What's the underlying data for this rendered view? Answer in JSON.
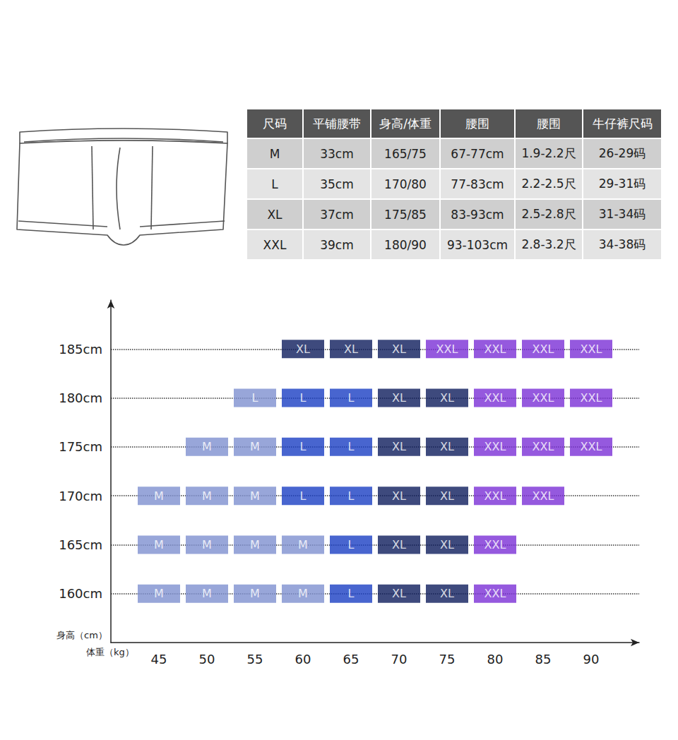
{
  "table": {
    "header": [
      "尺码",
      "平铺腰带",
      "身高/体重",
      "腰围",
      "腰围",
      "牛仔裤尺码"
    ],
    "rows": [
      [
        "M",
        "33cm",
        "165/75",
        "67-77cm",
        "1.9-2.2尺",
        "26-29码"
      ],
      [
        "L",
        "35cm",
        "170/80",
        "77-83cm",
        "2.2-2.5尺",
        "29-31码"
      ],
      [
        "XL",
        "37cm",
        "175/85",
        "83-93cm",
        "2.5-2.8尺",
        "31-34码"
      ],
      [
        "XXL",
        "39cm",
        "180/90",
        "93-103cm",
        "2.8-3.2尺",
        "34-38码"
      ]
    ]
  },
  "chart_data": {
    "type": "scatter",
    "x_label": "体重（kg）",
    "y_label": "身高（cm）",
    "x": [
      60,
      65,
      70,
      75,
      80,
      85,
      90,
      55,
      60,
      65,
      70,
      75,
      80,
      85,
      90,
      50,
      55,
      60,
      65,
      70,
      75,
      80,
      85,
      90,
      45,
      50,
      55,
      60,
      65,
      70,
      75,
      80,
      85,
      45,
      50,
      55,
      60,
      65,
      70,
      75,
      80,
      45,
      50,
      55,
      60,
      65,
      70,
      75,
      80
    ],
    "y": [
      185,
      185,
      185,
      185,
      185,
      185,
      185,
      180,
      180,
      180,
      180,
      180,
      180,
      180,
      180,
      175,
      175,
      175,
      175,
      175,
      175,
      175,
      175,
      175,
      170,
      170,
      170,
      170,
      170,
      170,
      170,
      170,
      170,
      165,
      165,
      165,
      165,
      165,
      165,
      165,
      165,
      160,
      160,
      160,
      160,
      160,
      160,
      160,
      160
    ],
    "labels": [
      "XL",
      "XL",
      "XL",
      "XXL",
      "XXL",
      "XXL",
      "XXL",
      "L",
      "L",
      "L",
      "XL",
      "XL",
      "XXL",
      "XXL",
      "XXL",
      "M",
      "M",
      "L",
      "L",
      "XL",
      "XL",
      "XXL",
      "XXL",
      "XXL",
      "M",
      "M",
      "M",
      "L",
      "L",
      "XL",
      "XL",
      "XXL",
      "XXL",
      "M",
      "M",
      "M",
      "M",
      "L",
      "XL",
      "XL",
      "XXL",
      "M",
      "M",
      "M",
      "M",
      "L",
      "XL",
      "XL",
      "XXL"
    ],
    "colors": [
      "#0e1d5c",
      "#0e1d5c",
      "#0e1d5c",
      "#7b2fd6",
      "#7b2fd6",
      "#7b2fd6",
      "#7b2fd6",
      "#7e90cf",
      "#1a3fc3",
      "#1a3fc3",
      "#0e1d5c",
      "#0e1d5c",
      "#7b2fd6",
      "#7b2fd6",
      "#7b2fd6",
      "#7e90cf",
      "#7e90cf",
      "#1a3fc3",
      "#1a3fc3",
      "#0e1d5c",
      "#0e1d5c",
      "#7b2fd6",
      "#7b2fd6",
      "#7b2fd6",
      "#7e90cf",
      "#7e90cf",
      "#7e90cf",
      "#1a3fc3",
      "#1a3fc3",
      "#0e1d5c",
      "#0e1d5c",
      "#7b2fd6",
      "#7b2fd6",
      "#7e90cf",
      "#7e90cf",
      "#7e90cf",
      "#7e90cf",
      "#1a3fc3",
      "#0e1d5c",
      "#0e1d5c",
      "#7b2fd6",
      "#7e90cf",
      "#7e90cf",
      "#7e90cf",
      "#7e90cf",
      "#1a3fc3",
      "#0e1d5c",
      "#0e1d5c",
      "#7b2fd6"
    ],
    "xlim": [
      40,
      95
    ],
    "xticks": [
      45,
      50,
      55,
      60,
      65,
      70,
      75,
      80,
      85,
      90
    ],
    "ylim": [
      155,
      190
    ],
    "yticks": [
      {
        "value": 160,
        "label": "160cm"
      },
      {
        "value": 165,
        "label": "165cm"
      },
      {
        "value": 170,
        "label": "170cm"
      },
      {
        "value": 175,
        "label": "175cm"
      },
      {
        "value": 180,
        "label": "180cm"
      },
      {
        "value": 185,
        "label": "185cm"
      }
    ],
    "grid": true,
    "data_labels": true
  }
}
